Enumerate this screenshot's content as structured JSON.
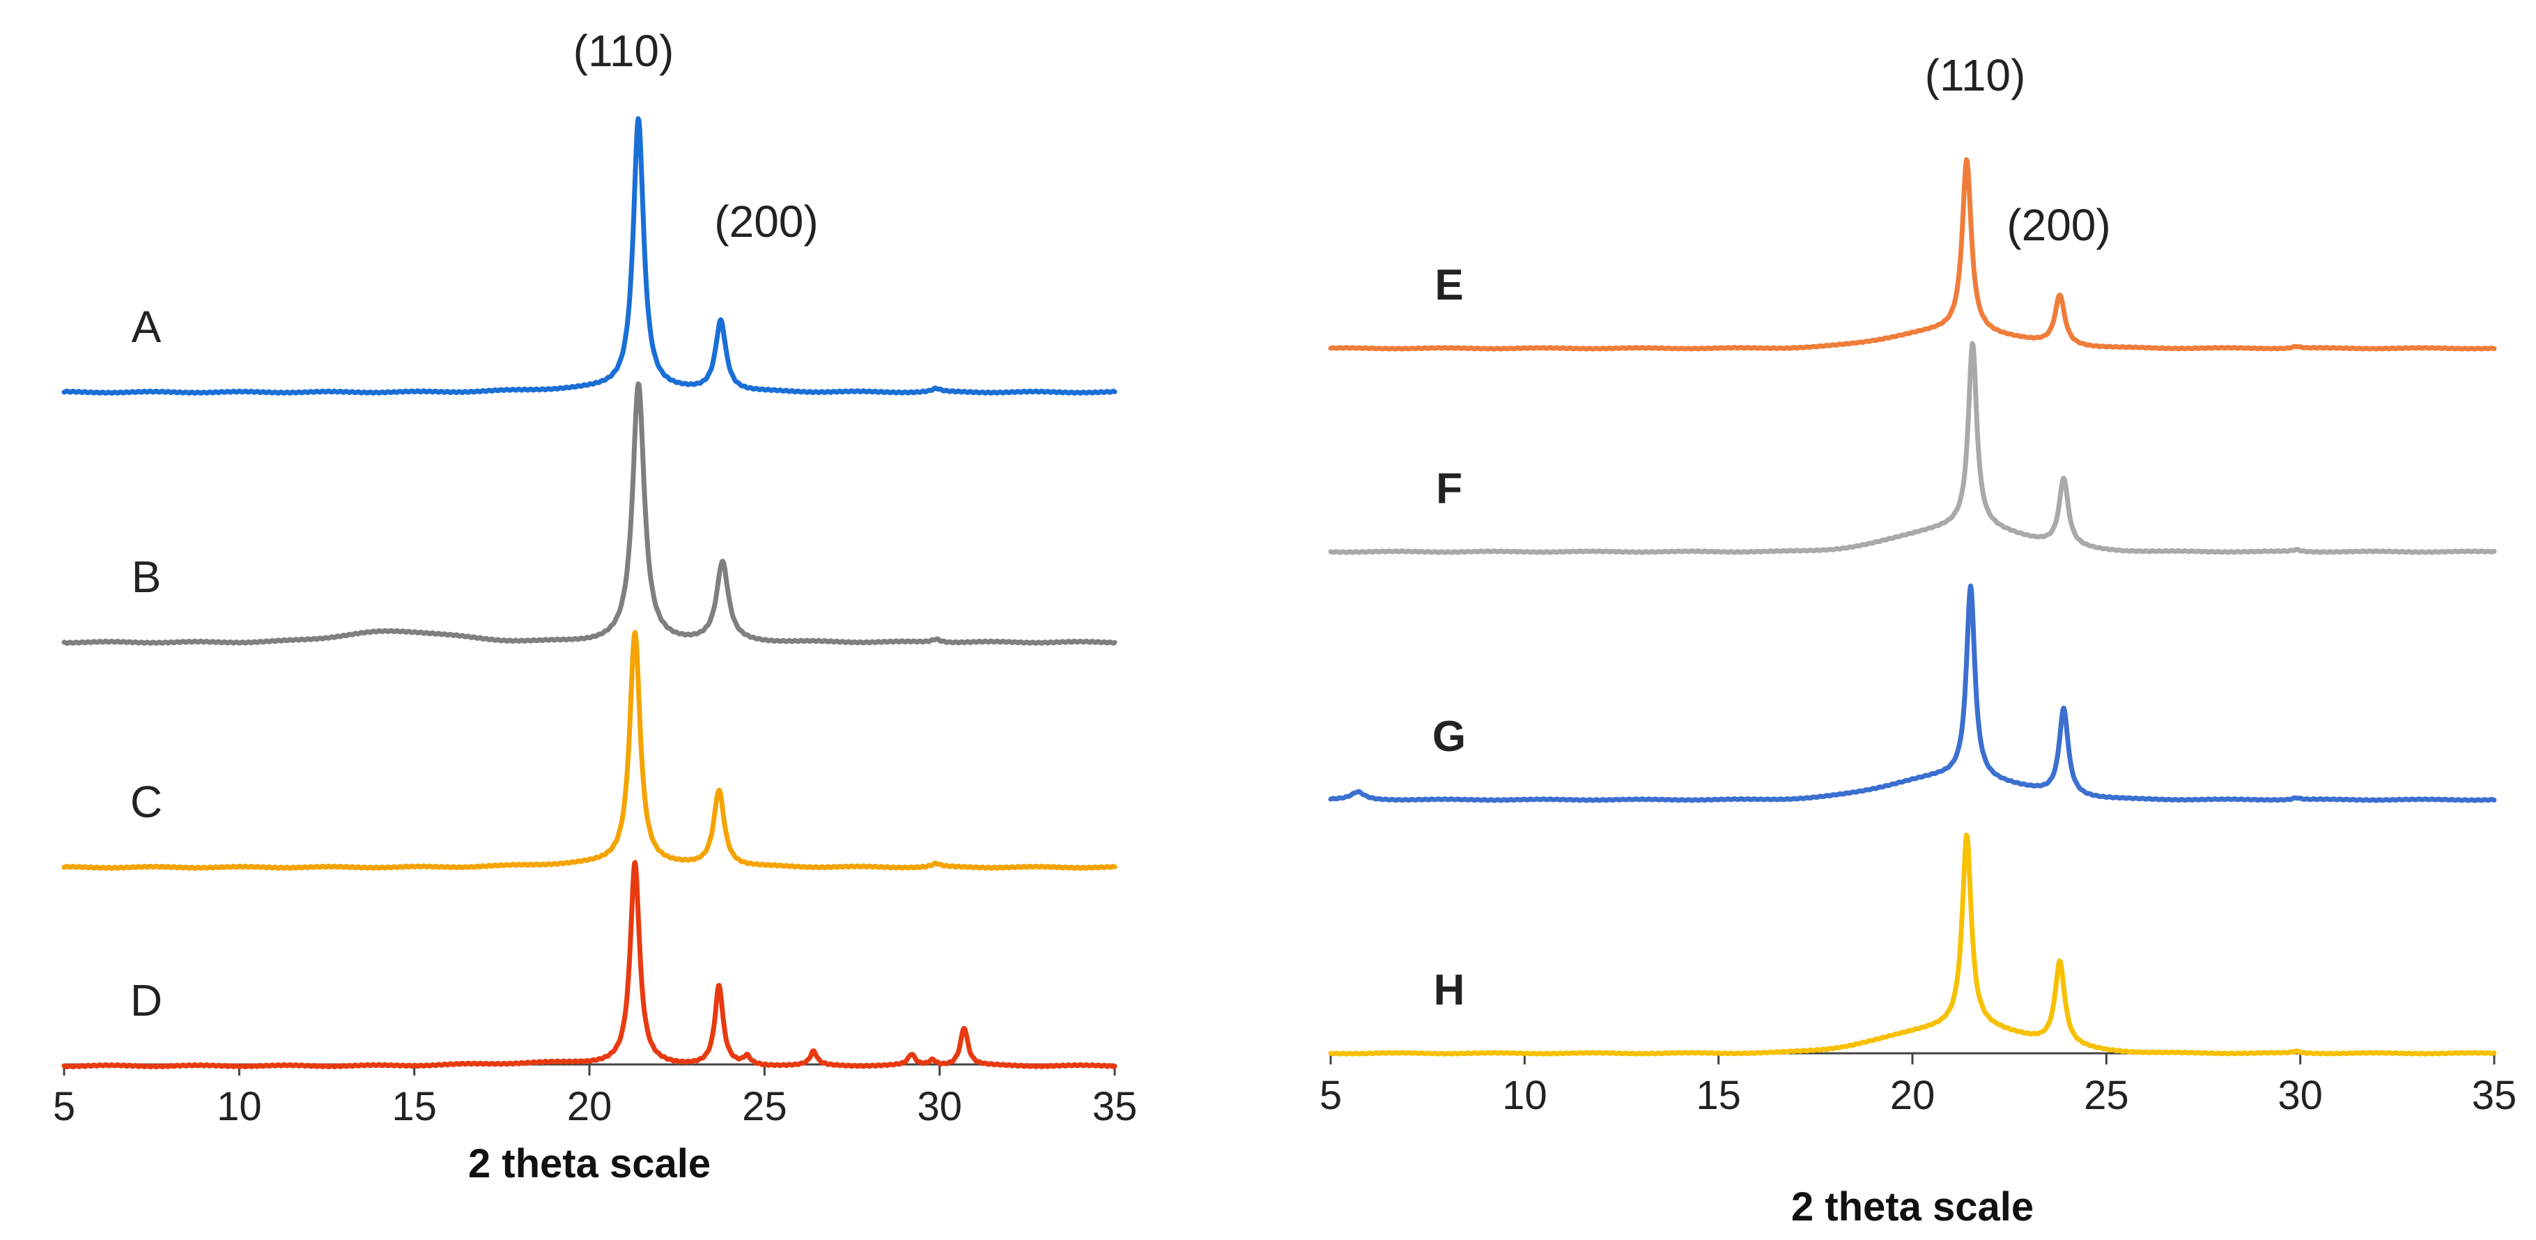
{
  "chart_data": [
    {
      "type": "line",
      "panel": "left",
      "title": "",
      "xlabel": "2 theta scale",
      "ylabel": "",
      "xlim": [
        5,
        35
      ],
      "xticks": [
        "5",
        "10",
        "15",
        "20",
        "25",
        "30",
        "35"
      ],
      "grid": false,
      "peak_labels": [
        {
          "text": "(110)",
          "x": 21.4
        },
        {
          "text": "(200)",
          "x": 23.8
        }
      ],
      "series": [
        {
          "name": "A",
          "color": "#1a6fd6",
          "peaks": [
            {
              "x": 21.4,
              "h": 1.0,
              "w": 0.18
            },
            {
              "x": 23.75,
              "h": 0.26,
              "w": 0.18
            },
            {
              "x": 29.9,
              "h": 0.012,
              "w": 0.15
            }
          ],
          "hump": {
            "x": 20.0,
            "h": 0.01,
            "w": 2.5
          }
        },
        {
          "name": "B",
          "color": "#7f7f7f",
          "peaks": [
            {
              "x": 21.4,
              "h": 0.95,
              "w": 0.2
            },
            {
              "x": 23.8,
              "h": 0.29,
              "w": 0.2
            },
            {
              "x": 29.9,
              "h": 0.012,
              "w": 0.15
            }
          ],
          "hump": {
            "x": 14.5,
            "h": 0.04,
            "w": 2.2
          }
        },
        {
          "name": "C",
          "color": "#f5a300",
          "peaks": [
            {
              "x": 21.3,
              "h": 0.86,
              "w": 0.18
            },
            {
              "x": 23.7,
              "h": 0.28,
              "w": 0.18
            },
            {
              "x": 29.9,
              "h": 0.012,
              "w": 0.15
            }
          ],
          "hump": {
            "x": 20.0,
            "h": 0.01,
            "w": 2.5
          }
        },
        {
          "name": "D",
          "color": "#e83a10",
          "peaks": [
            {
              "x": 21.3,
              "h": 0.74,
              "w": 0.16
            },
            {
              "x": 23.7,
              "h": 0.29,
              "w": 0.14
            },
            {
              "x": 24.5,
              "h": 0.03,
              "w": 0.12
            },
            {
              "x": 26.4,
              "h": 0.05,
              "w": 0.12
            },
            {
              "x": 29.2,
              "h": 0.04,
              "w": 0.12
            },
            {
              "x": 29.8,
              "h": 0.02,
              "w": 0.12
            },
            {
              "x": 30.7,
              "h": 0.14,
              "w": 0.13
            }
          ],
          "hump": {
            "x": 19.0,
            "h": 0.01,
            "w": 3.0
          }
        }
      ]
    },
    {
      "type": "line",
      "panel": "right",
      "title": "",
      "xlabel": "2 theta scale",
      "ylabel": "",
      "xlim": [
        5,
        35
      ],
      "xticks": [
        "5",
        "10",
        "15",
        "20",
        "25",
        "30",
        "35"
      ],
      "grid": false,
      "peak_labels": [
        {
          "text": "(110)",
          "x": 21.5
        },
        {
          "text": "(200)",
          "x": 23.7
        }
      ],
      "series": [
        {
          "name": "E",
          "color": "#ef7d3a",
          "peaks": [
            {
              "x": 21.4,
              "h": 0.9,
              "w": 0.14
            },
            {
              "x": 23.8,
              "h": 0.26,
              "w": 0.15
            },
            {
              "x": 29.9,
              "h": 0.01,
              "w": 0.12
            }
          ],
          "hump": {
            "x": 21.0,
            "h": 0.09,
            "w": 2.2
          }
        },
        {
          "name": "F",
          "color": "#a9a9a9",
          "peaks": [
            {
              "x": 21.55,
              "h": 0.96,
              "w": 0.13
            },
            {
              "x": 23.9,
              "h": 0.35,
              "w": 0.14
            },
            {
              "x": 29.9,
              "h": 0.01,
              "w": 0.12
            }
          ],
          "hump": {
            "x": 21.3,
            "h": 0.13,
            "w": 2.2
          }
        },
        {
          "name": "G",
          "color": "#3b6fd0",
          "peaks": [
            {
              "x": 21.5,
              "h": 1.0,
              "w": 0.13
            },
            {
              "x": 23.9,
              "h": 0.45,
              "w": 0.14
            },
            {
              "x": 29.9,
              "h": 0.01,
              "w": 0.12
            },
            {
              "x": 5.7,
              "h": 0.04,
              "w": 0.2
            }
          ],
          "hump": {
            "x": 21.0,
            "h": 0.12,
            "w": 2.3
          }
        },
        {
          "name": "H",
          "color": "#f7c000",
          "peaks": [
            {
              "x": 21.4,
              "h": 1.0,
              "w": 0.14
            },
            {
              "x": 23.8,
              "h": 0.43,
              "w": 0.15
            },
            {
              "x": 29.9,
              "h": 0.01,
              "w": 0.12
            }
          ],
          "hump": {
            "x": 21.2,
            "h": 0.14,
            "w": 2.5
          }
        }
      ]
    }
  ]
}
